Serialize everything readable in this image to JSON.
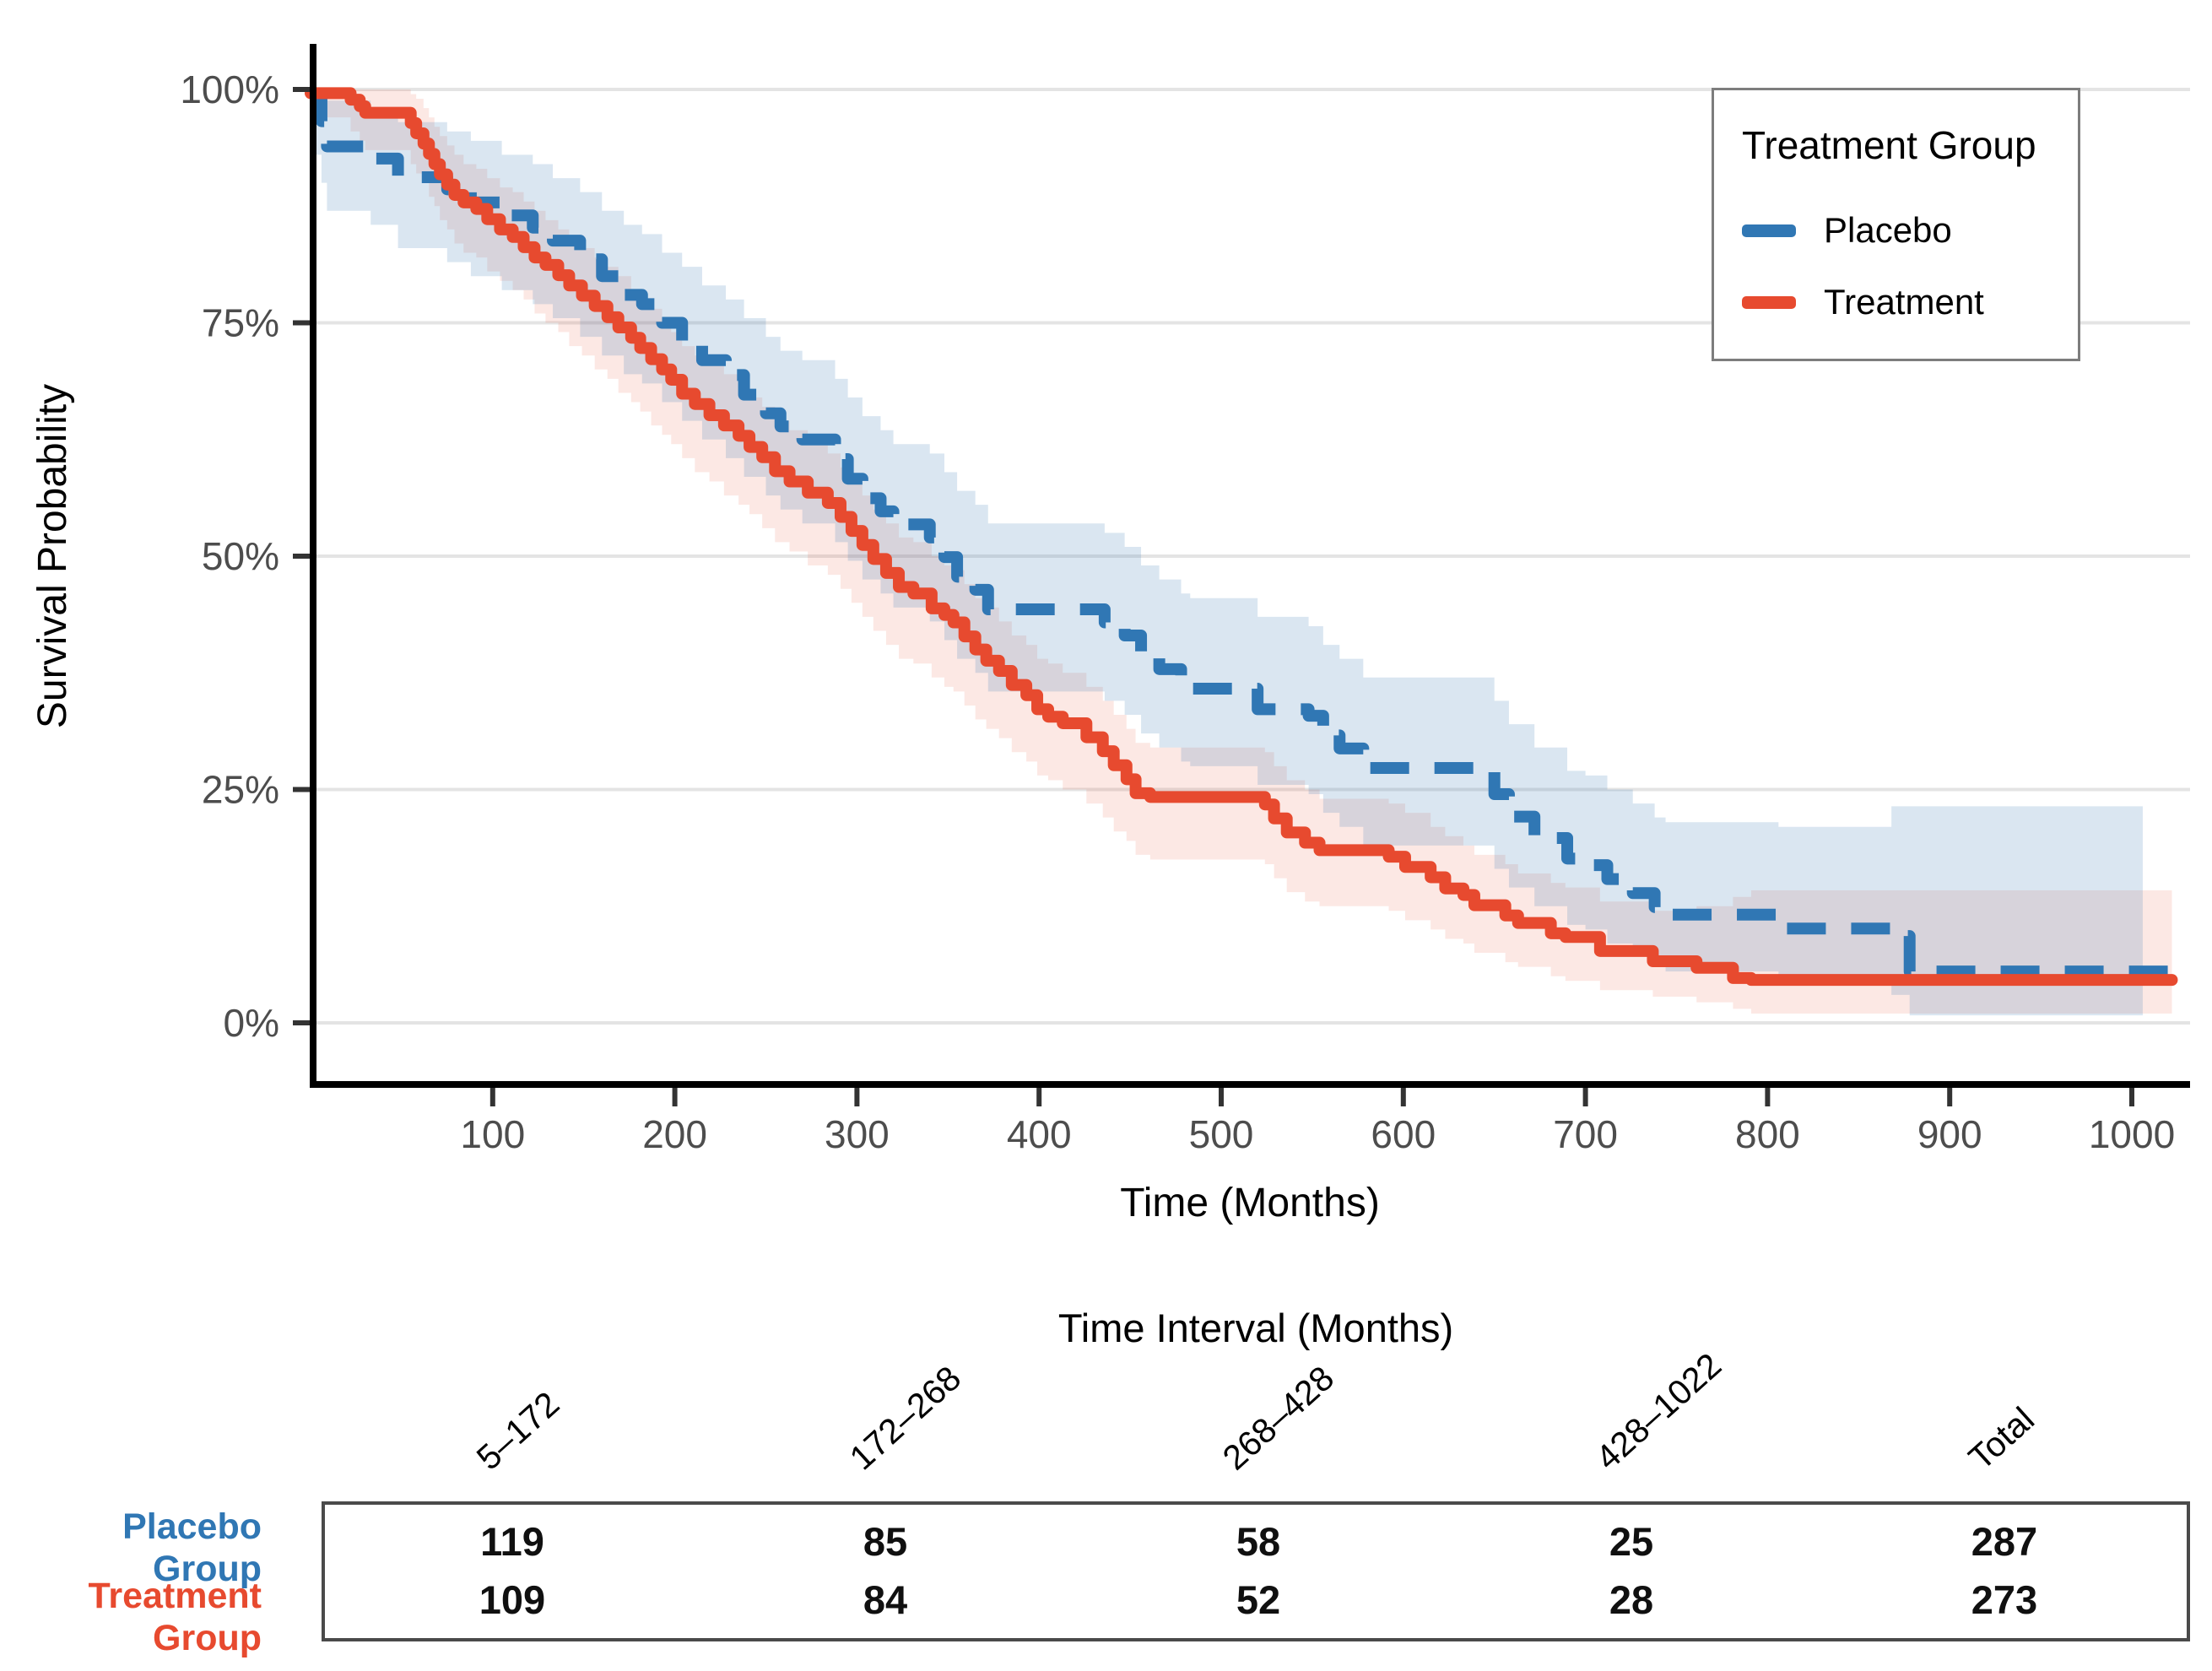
{
  "colors": {
    "placebo": "#3077B4",
    "treatment": "#E74A2F",
    "placebo_band_opacity": 0.18,
    "treatment_band_opacity": 0.13,
    "grid": "#e4e4e4",
    "axis_line": "#000000",
    "tick_mark": "#333333",
    "tick_label": "#4d4d4d",
    "legend_border": "#7d7d7d",
    "table_border": "#4a4a4a"
  },
  "chart_data": {
    "type": "line",
    "subtype": "kaplan-meier-step",
    "title": "",
    "xlabel": "Time (Months)",
    "ylabel": "Survival Probability",
    "xlim": [
      0,
      1022
    ],
    "ylim": [
      0,
      100
    ],
    "grid": "horizontal-only",
    "x_ticks": [
      100,
      200,
      300,
      400,
      500,
      600,
      700,
      800,
      900,
      1000
    ],
    "y_ticks": [
      {
        "value": 0,
        "label": "0%"
      },
      {
        "value": 25,
        "label": "25%"
      },
      {
        "value": 50,
        "label": "50%"
      },
      {
        "value": 75,
        "label": "75%"
      },
      {
        "value": 100,
        "label": "100%"
      }
    ],
    "legend": {
      "title": "Treatment Group",
      "position": "top-right",
      "entries": [
        {
          "label": "Placebo",
          "color": "#3077B4",
          "dashed": true
        },
        {
          "label": "Treatment",
          "color": "#E74A2F",
          "dashed": false
        }
      ]
    },
    "series": [
      {
        "name": "Placebo",
        "style": "dashed",
        "color": "#3077B4",
        "band_end": 1006,
        "points": [
          [
            0,
            99.3,
            93.0,
            100
          ],
          [
            6,
            96.6,
            90.0,
            100
          ],
          [
            9,
            93.9,
            87.0,
            98.8
          ],
          [
            33,
            92.6,
            85.5,
            98.0
          ],
          [
            48,
            90.6,
            83.0,
            96.5
          ],
          [
            75,
            89.3,
            81.5,
            95.5
          ],
          [
            88,
            87.9,
            80.0,
            94.5
          ],
          [
            105,
            86.5,
            78.5,
            93.0
          ],
          [
            122,
            85.2,
            77.0,
            92.0
          ],
          [
            133,
            83.8,
            75.5,
            90.5
          ],
          [
            148,
            81.8,
            73.5,
            89.0
          ],
          [
            160,
            80.0,
            71.5,
            87.0
          ],
          [
            172,
            78.0,
            69.5,
            85.5
          ],
          [
            182,
            77.0,
            68.5,
            84.5
          ],
          [
            193,
            75.0,
            66.5,
            82.5
          ],
          [
            204,
            73.0,
            64.5,
            81.0
          ],
          [
            215,
            71.0,
            62.5,
            79.0
          ],
          [
            228,
            69.4,
            60.5,
            77.5
          ],
          [
            238,
            67.3,
            58.5,
            75.5
          ],
          [
            250,
            65.3,
            56.5,
            73.5
          ],
          [
            258,
            63.9,
            55.0,
            72.0
          ],
          [
            270,
            62.5,
            53.5,
            71.0
          ],
          [
            288,
            60.4,
            51.5,
            69.0
          ],
          [
            295,
            58.3,
            49.5,
            67.0
          ],
          [
            303,
            56.2,
            47.5,
            65.0
          ],
          [
            313,
            54.8,
            46.0,
            63.5
          ],
          [
            320,
            53.4,
            44.5,
            62.0
          ],
          [
            340,
            52.0,
            43.0,
            61.0
          ],
          [
            348,
            49.9,
            41.0,
            59.0
          ],
          [
            355,
            47.8,
            39.0,
            57.0
          ],
          [
            365,
            46.4,
            37.5,
            55.5
          ],
          [
            372,
            44.3,
            35.5,
            53.5
          ],
          [
            436,
            42.9,
            34.5,
            52.5
          ],
          [
            447,
            41.5,
            33.0,
            51.0
          ],
          [
            456,
            39.4,
            31.0,
            49.0
          ],
          [
            466,
            37.9,
            29.5,
            47.5
          ],
          [
            478,
            36.5,
            28.0,
            46.0
          ],
          [
            483,
            35.8,
            27.5,
            45.5
          ],
          [
            520,
            33.6,
            25.5,
            43.5
          ],
          [
            548,
            32.9,
            24.5,
            42.5
          ],
          [
            556,
            30.8,
            22.5,
            40.5
          ],
          [
            565,
            29.4,
            21.0,
            39.0
          ],
          [
            578,
            27.3,
            19.0,
            37.0
          ],
          [
            650,
            24.5,
            16.5,
            34.5
          ],
          [
            658,
            22.1,
            14.5,
            32.0
          ],
          [
            672,
            19.8,
            12.5,
            29.5
          ],
          [
            690,
            17.6,
            10.5,
            27.0
          ],
          [
            700,
            16.9,
            10.0,
            26.5
          ],
          [
            712,
            15.4,
            8.5,
            25.0
          ],
          [
            726,
            13.9,
            7.5,
            23.5
          ],
          [
            738,
            12.4,
            6.5,
            22.0
          ],
          [
            744,
            11.6,
            5.5,
            21.5
          ],
          [
            806,
            10.1,
            4.0,
            21.0
          ],
          [
            868,
            9.3,
            3.0,
            23.2
          ],
          [
            878,
            5.5,
            0.8,
            23.2
          ],
          [
            1006,
            5.5,
            0.8,
            23.2
          ]
        ]
      },
      {
        "name": "Treatment",
        "style": "solid",
        "color": "#E74A2F",
        "band_end": 1022,
        "points": [
          [
            0,
            99.6,
            97.0,
            100
          ],
          [
            22,
            98.9,
            95.5,
            100
          ],
          [
            27,
            98.2,
            94.5,
            100
          ],
          [
            30,
            97.5,
            93.5,
            100
          ],
          [
            55,
            96.4,
            92.0,
            99.5
          ],
          [
            58,
            95.3,
            91.0,
            99.0
          ],
          [
            62,
            94.2,
            90.0,
            98.0
          ],
          [
            65,
            93.1,
            88.5,
            97.0
          ],
          [
            68,
            92.0,
            87.5,
            96.0
          ],
          [
            71,
            90.9,
            86.0,
            95.0
          ],
          [
            75,
            89.8,
            85.0,
            94.0
          ],
          [
            79,
            88.7,
            83.5,
            93.0
          ],
          [
            84,
            87.9,
            82.5,
            92.0
          ],
          [
            91,
            87.2,
            82.0,
            91.5
          ],
          [
            97,
            86.1,
            80.5,
            90.5
          ],
          [
            104,
            85.0,
            79.5,
            89.5
          ],
          [
            111,
            84.2,
            78.5,
            89.0
          ],
          [
            117,
            83.1,
            77.5,
            88.0
          ],
          [
            123,
            82.0,
            76.0,
            87.0
          ],
          [
            129,
            81.2,
            75.0,
            86.0
          ],
          [
            136,
            80.1,
            74.0,
            85.0
          ],
          [
            142,
            79.0,
            72.5,
            84.0
          ],
          [
            149,
            77.9,
            71.5,
            83.0
          ],
          [
            156,
            76.8,
            70.0,
            82.0
          ],
          [
            163,
            75.6,
            69.0,
            81.0
          ],
          [
            169,
            74.5,
            67.5,
            80.0
          ],
          [
            176,
            73.4,
            66.5,
            78.5
          ],
          [
            181,
            72.3,
            65.5,
            77.5
          ],
          [
            187,
            71.1,
            64.0,
            76.5
          ],
          [
            193,
            70.0,
            63.0,
            75.5
          ],
          [
            198,
            68.9,
            62.0,
            74.0
          ],
          [
            204,
            67.4,
            60.5,
            72.5
          ],
          [
            211,
            66.3,
            59.0,
            71.5
          ],
          [
            219,
            65.1,
            58.0,
            70.5
          ],
          [
            227,
            64.0,
            56.5,
            69.5
          ],
          [
            235,
            62.9,
            55.5,
            68.0
          ],
          [
            241,
            61.7,
            54.5,
            67.0
          ],
          [
            248,
            60.6,
            53.0,
            66.0
          ],
          [
            255,
            59.1,
            51.5,
            64.5
          ],
          [
            263,
            58.0,
            50.5,
            63.5
          ],
          [
            273,
            56.8,
            49.0,
            62.0
          ],
          [
            284,
            55.7,
            48.0,
            61.0
          ],
          [
            291,
            54.2,
            46.5,
            59.5
          ],
          [
            297,
            52.7,
            45.0,
            58.0
          ],
          [
            303,
            51.2,
            43.5,
            56.5
          ],
          [
            309,
            49.7,
            42.0,
            55.0
          ],
          [
            316,
            48.2,
            40.5,
            53.5
          ],
          [
            323,
            46.7,
            39.0,
            52.0
          ],
          [
            331,
            46.0,
            38.5,
            51.5
          ],
          [
            341,
            44.4,
            37.0,
            50.0
          ],
          [
            348,
            43.7,
            36.0,
            49.0
          ],
          [
            353,
            42.9,
            35.5,
            48.5
          ],
          [
            359,
            41.4,
            34.0,
            47.0
          ],
          [
            365,
            40.0,
            32.5,
            45.5
          ],
          [
            371,
            38.8,
            31.5,
            44.5
          ],
          [
            378,
            37.7,
            30.5,
            43.0
          ],
          [
            385,
            36.2,
            29.0,
            41.5
          ],
          [
            393,
            35.1,
            28.0,
            40.5
          ],
          [
            399,
            33.6,
            26.5,
            39.0
          ],
          [
            405,
            32.8,
            26.0,
            38.5
          ],
          [
            413,
            32.1,
            25.0,
            37.5
          ],
          [
            426,
            30.6,
            23.5,
            36.0
          ],
          [
            435,
            29.1,
            22.0,
            34.5
          ],
          [
            441,
            27.6,
            20.5,
            33.0
          ],
          [
            448,
            26.1,
            19.5,
            31.5
          ],
          [
            453,
            24.6,
            18.0,
            30.0
          ],
          [
            461,
            24.2,
            17.5,
            29.5
          ],
          [
            524,
            23.4,
            17.0,
            29.0
          ],
          [
            529,
            21.9,
            15.5,
            27.5
          ],
          [
            536,
            20.4,
            14.0,
            26.0
          ],
          [
            546,
            19.3,
            13.0,
            25.0
          ],
          [
            554,
            18.5,
            12.5,
            24.0
          ],
          [
            592,
            17.8,
            12.0,
            23.5
          ],
          [
            601,
            16.7,
            11.0,
            22.5
          ],
          [
            615,
            15.6,
            10.0,
            21.0
          ],
          [
            623,
            14.4,
            9.0,
            20.0
          ],
          [
            633,
            13.7,
            8.5,
            19.0
          ],
          [
            639,
            12.6,
            7.5,
            18.0
          ],
          [
            656,
            11.5,
            6.5,
            17.0
          ],
          [
            663,
            10.7,
            6.0,
            16.0
          ],
          [
            681,
            9.6,
            5.0,
            15.0
          ],
          [
            689,
            9.2,
            4.5,
            14.5
          ],
          [
            708,
            7.7,
            3.5,
            13.0
          ],
          [
            737,
            6.6,
            2.8,
            12.0
          ],
          [
            761,
            5.9,
            2.2,
            12.5
          ],
          [
            781,
            4.8,
            1.5,
            13.5
          ],
          [
            791,
            4.6,
            1.0,
            14.2
          ],
          [
            1022,
            4.6,
            1.0,
            14.2
          ]
        ]
      }
    ]
  },
  "bottom_table": {
    "title": "Time Interval (Months)",
    "columns": [
      "5–172",
      "172–268",
      "268–428",
      "428–1022",
      "Total"
    ],
    "rows": [
      {
        "label": "Placebo Group",
        "label_lines": [
          "Placebo",
          "Group"
        ],
        "values": [
          "119",
          "85",
          "58",
          "25",
          "287"
        ]
      },
      {
        "label": "Treatment Group",
        "label_lines": [
          "Treatment",
          "Group"
        ],
        "values": [
          "109",
          "84",
          "52",
          "28",
          "273"
        ]
      }
    ]
  }
}
